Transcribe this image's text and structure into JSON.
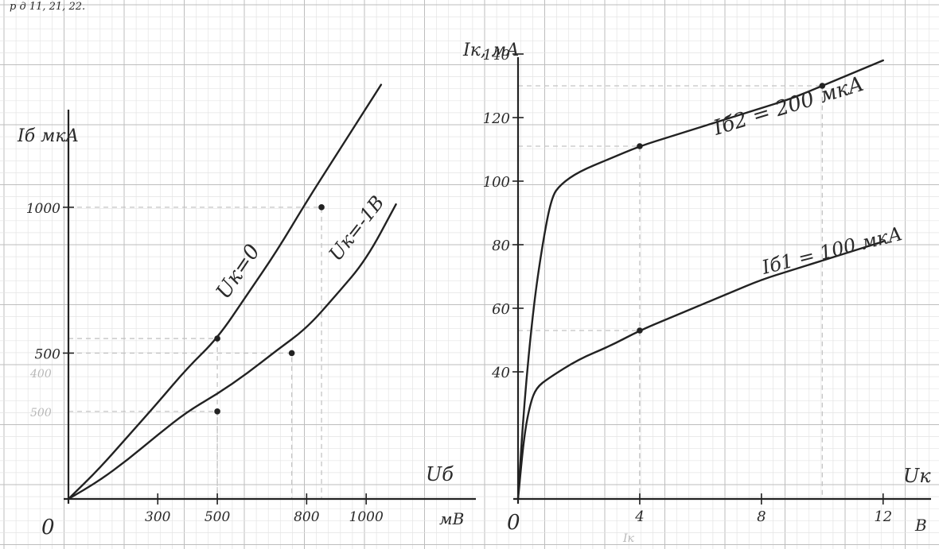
{
  "header_fragment": "р       д       11,   21,   22.",
  "colors": {
    "paper": "#ffffff",
    "grid_minor": "#e4e4e4",
    "grid_major": "#bdbdbd",
    "ink": "#222222",
    "pencil": "#c4c4c4"
  },
  "chart_data": [
    {
      "type": "line",
      "title": "",
      "ylabel": "Iб  мкА",
      "xlabel": "Uб",
      "x_unit_label": "мВ",
      "origin_label": "0",
      "xlim": [
        0,
        1200
      ],
      "ylim": [
        0,
        1400
      ],
      "x_ticks": [
        300,
        500,
        800,
        1000
      ],
      "x_tick_labels": [
        "300",
        "500",
        "800",
        "1000"
      ],
      "y_ticks": [
        500,
        1000
      ],
      "y_tick_labels": [
        "500",
        "1000"
      ],
      "grid": true,
      "series": [
        {
          "name": "Uк=0",
          "x": [
            0,
            100,
            200,
            300,
            400,
            500,
            600,
            700,
            800,
            900,
            1000,
            1050
          ],
          "y": [
            0,
            100,
            215,
            330,
            450,
            550,
            700,
            850,
            1020,
            1180,
            1340,
            1420
          ],
          "markers_x": [
            500,
            850
          ],
          "markers_y": [
            550,
            1000
          ]
        },
        {
          "name": "Uк=-1В",
          "x": [
            0,
            100,
            200,
            300,
            400,
            500,
            600,
            700,
            800,
            900,
            1000,
            1100
          ],
          "y": [
            0,
            60,
            135,
            220,
            300,
            360,
            430,
            510,
            585,
            700,
            820,
            1010
          ],
          "markers_x": [
            500,
            750
          ],
          "markers_y": [
            300,
            500
          ]
        }
      ],
      "annotations": [
        "500",
        "400"
      ]
    },
    {
      "type": "line",
      "title": "",
      "ylabel": "Iк, мА",
      "xlabel": "Uк",
      "x_unit_label": "В",
      "origin_label": "0",
      "xlim": [
        0,
        13
      ],
      "ylim": [
        0,
        150
      ],
      "x_ticks": [
        4,
        8,
        12
      ],
      "x_tick_labels": [
        "4",
        "8",
        "12"
      ],
      "y_ticks": [
        40,
        60,
        80,
        100,
        120,
        140
      ],
      "y_tick_labels": [
        "40",
        "60",
        "80",
        "100",
        "120",
        "140"
      ],
      "grid": true,
      "series": [
        {
          "name": "Iб2 = 200 мкА",
          "x": [
            0,
            0.2,
            0.5,
            0.8,
            1.1,
            1.4,
            2,
            3,
            4,
            5,
            6,
            7,
            8,
            9,
            10,
            11,
            12
          ],
          "y": [
            0,
            30,
            60,
            80,
            95,
            99,
            103,
            107,
            111,
            114,
            117,
            120,
            123,
            126,
            130,
            134,
            138
          ],
          "markers_x": [
            4,
            10
          ],
          "markers_y": [
            111,
            130
          ]
        },
        {
          "name": "Iб1 = 100 мкА",
          "x": [
            0,
            0.2,
            0.4,
            0.6,
            1,
            2,
            3,
            4,
            5,
            6,
            7,
            8,
            9,
            10,
            11,
            12
          ],
          "y": [
            0,
            20,
            30,
            35,
            38,
            44,
            48,
            53,
            57,
            61,
            65,
            69,
            72,
            75,
            78,
            81
          ],
          "markers_x": [
            4
          ],
          "markers_y": [
            53
          ]
        }
      ],
      "annotations": [
        "Iк"
      ]
    }
  ]
}
